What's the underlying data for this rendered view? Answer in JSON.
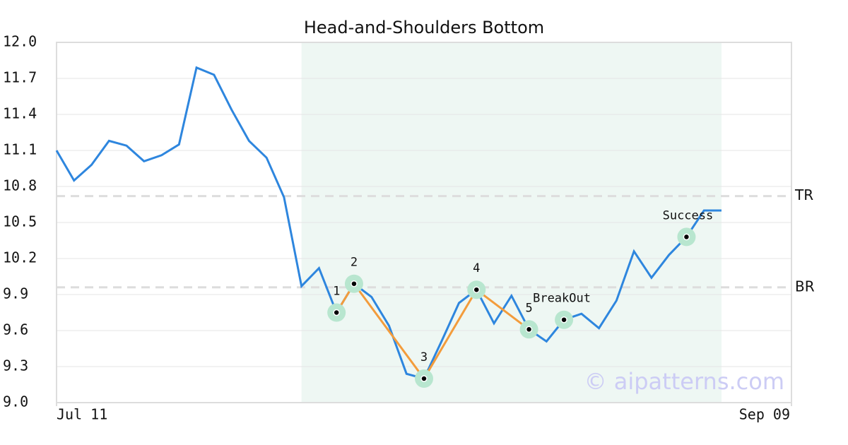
{
  "chart_data": {
    "type": "line",
    "title": "Head-and-Shoulders Bottom",
    "series": [
      {
        "color": "#2e86de",
        "values": [
          11.1,
          10.85,
          10.98,
          11.18,
          11.14,
          11.01,
          11.06,
          11.15,
          11.79,
          11.73,
          11.44,
          11.18,
          11.04,
          10.71,
          9.97,
          10.12,
          9.75,
          9.99,
          9.88,
          9.64,
          9.24,
          9.2,
          9.51,
          9.83,
          9.94,
          9.66,
          9.89,
          9.61,
          9.51,
          9.69,
          9.74,
          9.62,
          9.85,
          10.26,
          10.04,
          10.23,
          10.38,
          10.6,
          10.6
        ]
      }
    ],
    "xlim": [
      0,
      42
    ],
    "xticks": [
      {
        "value": 0,
        "label": "Jul 11"
      },
      {
        "value": 42,
        "label": "Sep 09"
      }
    ],
    "ylim": [
      9,
      12
    ],
    "yticks": [
      {
        "value": 9,
        "label": "9.0"
      },
      9.3,
      9.6,
      9.9,
      10.2,
      10.5,
      10.8,
      11.1,
      11.4,
      11.7,
      {
        "value": 12,
        "label": "12.0"
      }
    ],
    "grid": true,
    "shade": {
      "xlim": [
        14,
        38
      ],
      "color": "#eef7f3"
    },
    "pattern": {
      "color": "#f39c3c",
      "marker_color": "#b8e6cf",
      "points": [
        {
          "label": "1",
          "x": 16,
          "value": 9.75
        },
        {
          "label": "2",
          "x": 17,
          "value": 9.99
        },
        {
          "label": "3",
          "x": 21,
          "value": 9.2
        },
        {
          "label": "4",
          "x": 24,
          "value": 9.94
        },
        {
          "label": "5",
          "x": 27,
          "value": 9.61
        }
      ]
    },
    "annotations": [
      {
        "text": "BreakOut",
        "x": 29,
        "value": 9.69
      },
      {
        "text": "Success",
        "x": 36,
        "value": 10.38
      }
    ],
    "hlines": [
      {
        "label": "TR",
        "value": 10.72
      },
      {
        "label": "BR",
        "value": 9.96
      }
    ],
    "watermark": "© aipatterns.com"
  }
}
